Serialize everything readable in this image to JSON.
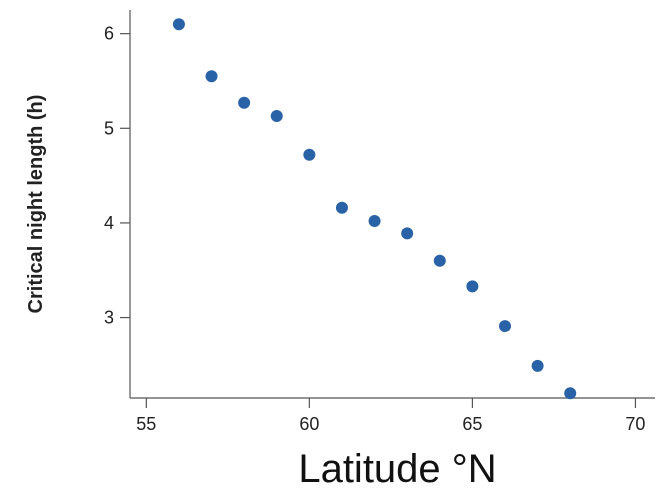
{
  "chart_data": {
    "type": "scatter",
    "title": "",
    "xlabel": "Latitude °N",
    "ylabel": "Critical night length (h)",
    "xlim": [
      54.5,
      70.6
    ],
    "ylim": [
      2.15,
      6.25
    ],
    "xticks": [
      55,
      60,
      65,
      70
    ],
    "yticks": [
      3,
      4,
      5,
      6
    ],
    "grid": false,
    "legend": "none",
    "marker_color": "#2a62a8",
    "x": [
      56,
      57,
      58,
      59,
      60,
      61,
      62,
      63,
      64,
      65,
      66,
      67,
      68
    ],
    "y": [
      6.1,
      5.55,
      5.27,
      5.13,
      4.72,
      4.16,
      4.02,
      3.89,
      3.6,
      3.33,
      2.91,
      2.49,
      2.2
    ]
  }
}
